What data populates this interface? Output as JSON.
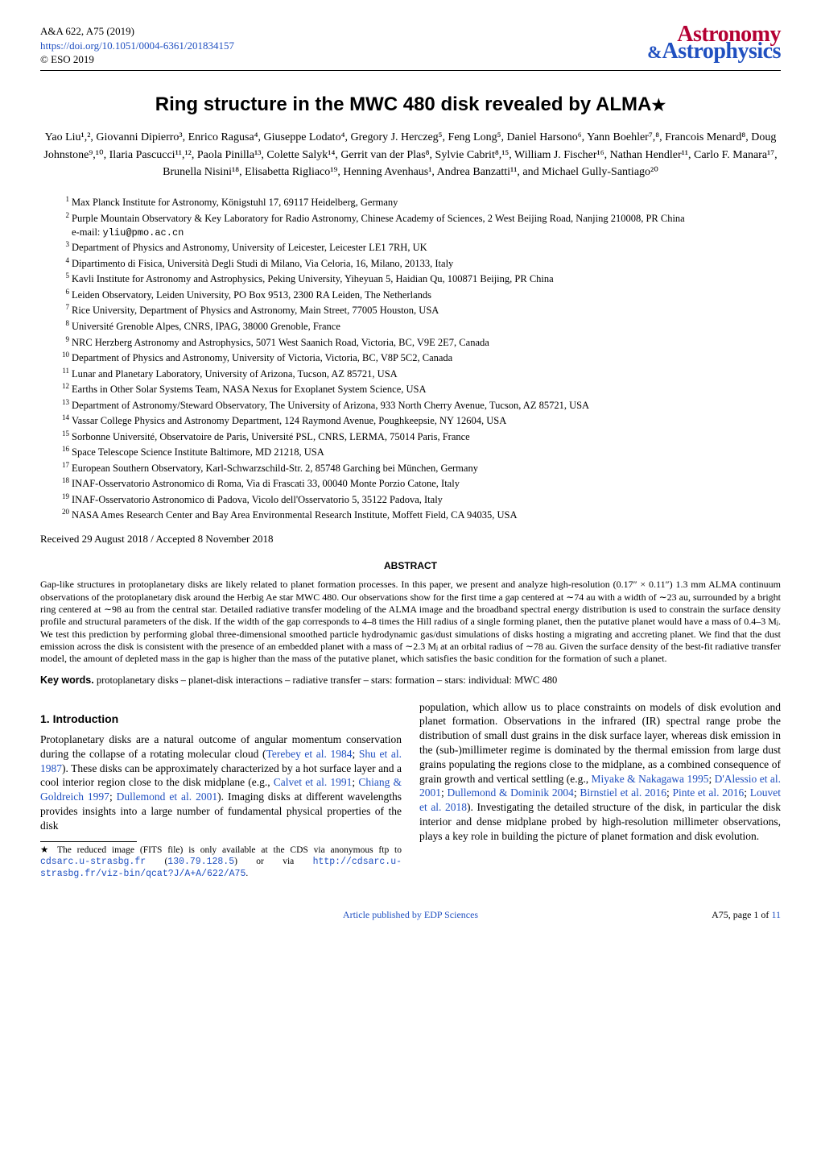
{
  "header": {
    "journal_ref": "A&A 622, A75 (2019)",
    "doi_url": "https://doi.org/10.1051/0004-6361/201834157",
    "copyright": "© ESO 2019",
    "logo_top": "Astronomy",
    "logo_amp": "&",
    "logo_bottom": "Astrophysics",
    "logo_color_top": "#b40033",
    "logo_color_bottom": "#2050c0"
  },
  "title": "Ring structure in the MWC 480 disk revealed by ALMA",
  "title_star": "★",
  "authors": "Yao Liu¹,², Giovanni Dipierro³, Enrico Ragusa⁴, Giuseppe Lodato⁴, Gregory J. Herczeg⁵, Feng Long⁵, Daniel Harsono⁶, Yann Boehler⁷,⁸, Francois Menard⁸, Doug Johnstone⁹,¹⁰, Ilaria Pascucci¹¹,¹², Paola Pinilla¹³, Colette Salyk¹⁴, Gerrit van der Plas⁸, Sylvie Cabrit⁸,¹⁵, William J. Fischer¹⁶, Nathan Hendler¹¹, Carlo F. Manara¹⁷, Brunella Nisini¹⁸, Elisabetta Rigliaco¹⁹, Henning Avenhaus¹, Andrea Banzatti¹¹, and Michael Gully-Santiago²⁰",
  "affiliations": [
    "Max Planck Institute for Astronomy, Königstuhl 17, 69117 Heidelberg, Germany",
    "Purple Mountain Observatory & Key Laboratory for Radio Astronomy, Chinese Academy of Sciences, 2 West Beijing Road, Nanjing 210008, PR China",
    "Department of Physics and Astronomy, University of Leicester, Leicester LE1 7RH, UK",
    "Dipartimento di Fisica, Università Degli Studi di Milano, Via Celoria, 16, Milano, 20133, Italy",
    "Kavli Institute for Astronomy and Astrophysics, Peking University, Yiheyuan 5, Haidian Qu, 100871 Beijing, PR China",
    "Leiden Observatory, Leiden University, PO Box 9513, 2300 RA Leiden, The Netherlands",
    "Rice University, Department of Physics and Astronomy, Main Street, 77005 Houston, USA",
    "Université Grenoble Alpes, CNRS, IPAG, 38000 Grenoble, France",
    "NRC Herzberg Astronomy and Astrophysics, 5071 West Saanich Road, Victoria, BC, V9E 2E7, Canada",
    "Department of Physics and Astronomy, University of Victoria, Victoria, BC, V8P 5C2, Canada",
    "Lunar and Planetary Laboratory, University of Arizona, Tucson, AZ 85721, USA",
    "Earths in Other Solar Systems Team, NASA Nexus for Exoplanet System Science, USA",
    "Department of Astronomy/Steward Observatory, The University of Arizona, 933 North Cherry Avenue, Tucson, AZ 85721, USA",
    "Vassar College Physics and Astronomy Department, 124 Raymond Avenue, Poughkeepsie, NY 12604, USA",
    "Sorbonne Université, Observatoire de Paris, Université PSL, CNRS, LERMA, 75014 Paris, France",
    "Space Telescope Science Institute Baltimore, MD 21218, USA",
    "European Southern Observatory, Karl-Schwarzschild-Str. 2, 85748 Garching bei München, Germany",
    "INAF-Osservatorio Astronomico di Roma, Via di Frascati 33, 00040 Monte Porzio Catone, Italy",
    "INAF-Osservatorio Astronomico di Padova, Vicolo dell'Osservatorio 5, 35122 Padova, Italy",
    "NASA Ames Research Center and Bay Area Environmental Research Institute, Moffett Field, CA 94035, USA"
  ],
  "email_label": "e-mail: ",
  "email": "yliu@pmo.ac.cn",
  "received": "Received 29 August 2018 / Accepted 8 November 2018",
  "abstract_head": "ABSTRACT",
  "abstract": "Gap-like structures in protoplanetary disks are likely related to planet formation processes. In this paper, we present and analyze high-resolution (0.17″ × 0.11″) 1.3 mm ALMA continuum observations of the protoplanetary disk around the Herbig Ae star MWC 480. Our observations show for the first time a gap centered at ∼74 au with a width of ∼23 au, surrounded by a bright ring centered at ∼98 au from the central star. Detailed radiative transfer modeling of the ALMA image and the broadband spectral energy distribution is used to constrain the surface density profile and structural parameters of the disk. If the width of the gap corresponds to 4–8 times the Hill radius of a single forming planet, then the putative planet would have a mass of 0.4–3 Mⱼ. We test this prediction by performing global three-dimensional smoothed particle hydrodynamic gas/dust simulations of disks hosting a migrating and accreting planet. We find that the dust emission across the disk is consistent with the presence of an embedded planet with a mass of ∼2.3 Mⱼ at an orbital radius of ∼78 au. Given the surface density of the best-fit radiative transfer model, the amount of depleted mass in the gap is higher than the mass of the putative planet, which satisfies the basic condition for the formation of such a planet.",
  "keywords_label": "Key words.",
  "keywords": " protoplanetary disks – planet-disk interactions – radiative transfer – stars: formation – stars: individual: MWC 480",
  "section1_head": "1. Introduction",
  "col1_p1a": "Protoplanetary disks are a natural outcome of angular momentum conservation during the collapse of a rotating molecular cloud (",
  "col1_c1": "Terebey et al. 1984",
  "col1_s1": "; ",
  "col1_c2": "Shu et al. 1987",
  "col1_p1b": "). These disks can be approximately characterized by a hot surface layer and a cool interior region close to the disk midplane (e.g., ",
  "col1_c3": "Calvet et al. 1991",
  "col1_s2": "; ",
  "col1_c4": "Chiang & Goldreich 1997",
  "col1_s3": "; ",
  "col1_c5": "Dullemond et al. 2001",
  "col1_p1c": "). Imaging disks at different wavelengths provides insights into a large number of fundamental physical properties of the disk",
  "footnote_star": "★",
  "footnote_a": " The reduced image (FITS file) is only available at the CDS via anonymous ftp to ",
  "footnote_m1": "cdsarc.u-strasbg.fr",
  "footnote_b": " (",
  "footnote_m2": "130.79.128.5",
  "footnote_c": ") or via ",
  "footnote_m3": "http://cdsarc.u-strasbg.fr/viz-bin/qcat?J/A+A/622/A75",
  "footnote_d": ".",
  "col2_p1a": "population, which allow us to place constraints on models of disk evolution and planet formation. Observations in the infrared (IR) spectral range probe the distribution of small dust grains in the disk surface layer, whereas disk emission in the (sub-)millimeter regime is dominated by the thermal emission from large dust grains populating the regions close to the midplane, as a combined consequence of grain growth and vertical settling (e.g., ",
  "col2_c1": "Miyake & Nakagawa 1995",
  "col2_s1": "; ",
  "col2_c2": "D'Alessio et al. 2001",
  "col2_s2": "; ",
  "col2_c3": "Dullemond & Dominik 2004",
  "col2_s3": "; ",
  "col2_c4": "Birnstiel et al. 2016",
  "col2_s4": "; ",
  "col2_c5": "Pinte et al. 2016",
  "col2_s5": "; ",
  "col2_c6": "Louvet et al. 2018",
  "col2_p1b": "). Investigating the detailed structure of the disk, in particular the disk interior and dense midplane probed by high-resolution millimeter observations, plays a key role in building the picture of planet formation and disk evolution.",
  "footer_pub": "Article published by EDP Sciences",
  "footer_page": "A75, page 1 of ",
  "footer_total": "11"
}
